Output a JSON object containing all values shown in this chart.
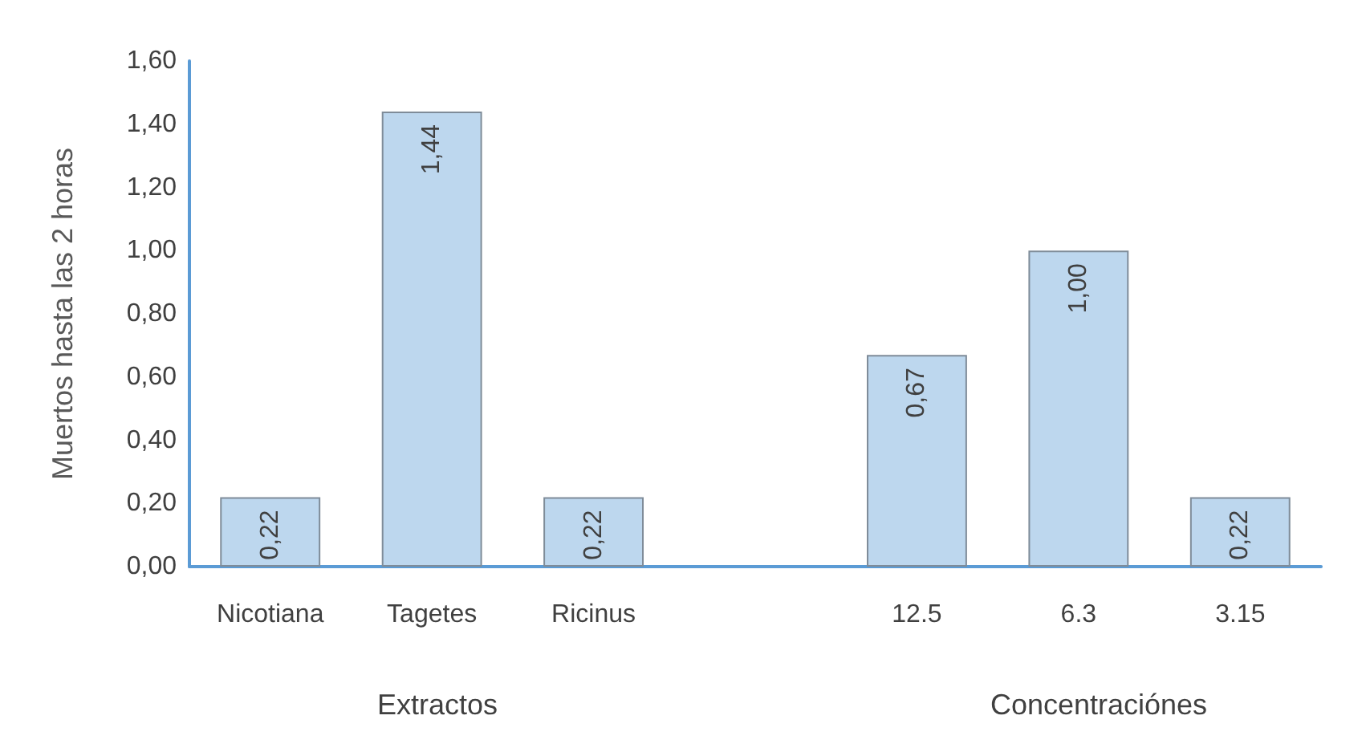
{
  "chart_data": {
    "type": "bar",
    "ylabel": "Muertos hasta las 2 horas",
    "categories": [
      "Nicotiana",
      "Tagetes",
      "Ricinus",
      null,
      "12.5",
      "6.3",
      "3.15"
    ],
    "values": [
      0.22,
      1.44,
      0.22,
      null,
      0.67,
      1.0,
      0.22
    ],
    "color": "#bdd7ee",
    "ylim": [
      0,
      1.6
    ],
    "yticks": [
      {
        "value": 0,
        "label": "0,00"
      },
      {
        "value": 0.2,
        "label": "0,20"
      },
      {
        "value": 0.4,
        "label": "0,40"
      },
      {
        "value": 0.6,
        "label": "0,60"
      },
      {
        "value": 0.8,
        "label": "0,80"
      },
      {
        "value": 1.0,
        "label": "1,00"
      },
      {
        "value": 1.2,
        "label": "1,20"
      },
      {
        "value": 1.4,
        "label": "1,40"
      },
      {
        "value": 1.6,
        "label": "1,60"
      }
    ],
    "value_labels": [
      "0,22",
      "1,44",
      "0,22",
      null,
      "0,67",
      "1,00",
      "0,22"
    ],
    "grid": false,
    "annotations": [
      "Extractos",
      "Concentraciónes"
    ]
  }
}
